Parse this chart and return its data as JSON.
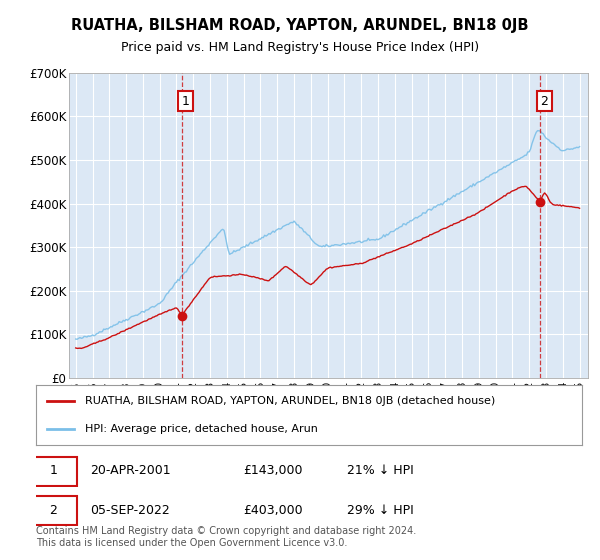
{
  "title": "RUATHA, BILSHAM ROAD, YAPTON, ARUNDEL, BN18 0JB",
  "subtitle": "Price paid vs. HM Land Registry's House Price Index (HPI)",
  "legend_line1": "RUATHA, BILSHAM ROAD, YAPTON, ARUNDEL, BN18 0JB (detached house)",
  "legend_line2": "HPI: Average price, detached house, Arun",
  "annotation1_label": "1",
  "annotation1_date": "20-APR-2001",
  "annotation1_price": "£143,000",
  "annotation1_hpi": "21% ↓ HPI",
  "annotation1_year": 2001.3,
  "annotation1_value": 143000,
  "annotation2_label": "2",
  "annotation2_date": "05-SEP-2022",
  "annotation2_price": "£403,000",
  "annotation2_hpi": "29% ↓ HPI",
  "annotation2_year": 2022.67,
  "annotation2_value": 403000,
  "hpi_color": "#7bbfe8",
  "price_color": "#cc1111",
  "plot_bg": "#dce8f5",
  "grid_color": "#ffffff",
  "footer": "Contains HM Land Registry data © Crown copyright and database right 2024.\nThis data is licensed under the Open Government Licence v3.0.",
  "ylim": [
    0,
    700000
  ],
  "yticks": [
    0,
    100000,
    200000,
    300000,
    400000,
    500000,
    600000,
    700000
  ],
  "ytick_labels": [
    "£0",
    "£100K",
    "£200K",
    "£300K",
    "£400K",
    "£500K",
    "£600K",
    "£700K"
  ],
  "xlim_start": 1994.6,
  "xlim_end": 2025.5,
  "xtick_years": [
    1995,
    1996,
    1997,
    1998,
    1999,
    2000,
    2001,
    2002,
    2003,
    2004,
    2005,
    2006,
    2007,
    2008,
    2009,
    2010,
    2011,
    2012,
    2013,
    2014,
    2015,
    2016,
    2017,
    2018,
    2019,
    2020,
    2021,
    2022,
    2023,
    2024,
    2025
  ]
}
